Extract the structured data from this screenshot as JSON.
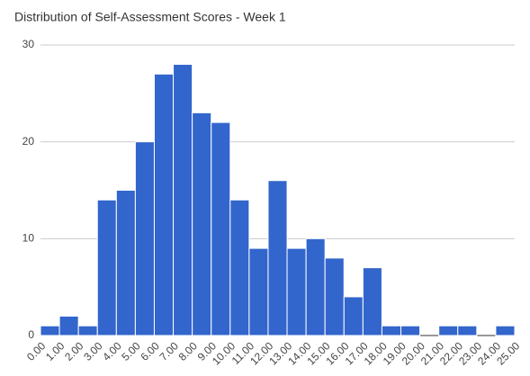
{
  "chart_data": {
    "type": "histogram",
    "title": "Distribution of Self-Assessment Scores - Week 1",
    "bins": [
      0,
      1,
      2,
      3,
      4,
      5,
      6,
      7,
      8,
      9,
      10,
      11,
      12,
      13,
      14,
      15,
      16,
      17,
      18,
      19,
      20,
      21,
      22,
      23,
      24,
      25
    ],
    "counts": [
      1,
      2,
      1,
      14,
      15,
      20,
      27,
      28,
      23,
      22,
      14,
      9,
      16,
      9,
      10,
      8,
      4,
      7,
      1,
      1,
      0,
      1,
      1,
      0,
      1
    ],
    "color": "#3366cc",
    "xlim": [
      0,
      25
    ],
    "xticks": [
      {
        "value": 0,
        "label": "0.00"
      },
      {
        "value": 1,
        "label": "1.00"
      },
      {
        "value": 2,
        "label": "2.00"
      },
      {
        "value": 3,
        "label": "3.00"
      },
      {
        "value": 4,
        "label": "4.00"
      },
      {
        "value": 5,
        "label": "5.00"
      },
      {
        "value": 6,
        "label": "6.00"
      },
      {
        "value": 7,
        "label": "7.00"
      },
      {
        "value": 8,
        "label": "8.00"
      },
      {
        "value": 9,
        "label": "9.00"
      },
      {
        "value": 10,
        "label": "10.00"
      },
      {
        "value": 11,
        "label": "11.00"
      },
      {
        "value": 12,
        "label": "12.00"
      },
      {
        "value": 13,
        "label": "13.00"
      },
      {
        "value": 14,
        "label": "14.00"
      },
      {
        "value": 15,
        "label": "15.00"
      },
      {
        "value": 16,
        "label": "16.00"
      },
      {
        "value": 17,
        "label": "17.00"
      },
      {
        "value": 18,
        "label": "18.00"
      },
      {
        "value": 19,
        "label": "19.00"
      },
      {
        "value": 20,
        "label": "20.00"
      },
      {
        "value": 21,
        "label": "21.00"
      },
      {
        "value": 22,
        "label": "22.00"
      },
      {
        "value": 23,
        "label": "23.00"
      },
      {
        "value": 24,
        "label": "24.00"
      },
      {
        "value": 25,
        "label": "25.00"
      }
    ],
    "ylim": [
      0,
      30
    ],
    "yticks": [
      0,
      10,
      20,
      30
    ],
    "grid": true
  }
}
